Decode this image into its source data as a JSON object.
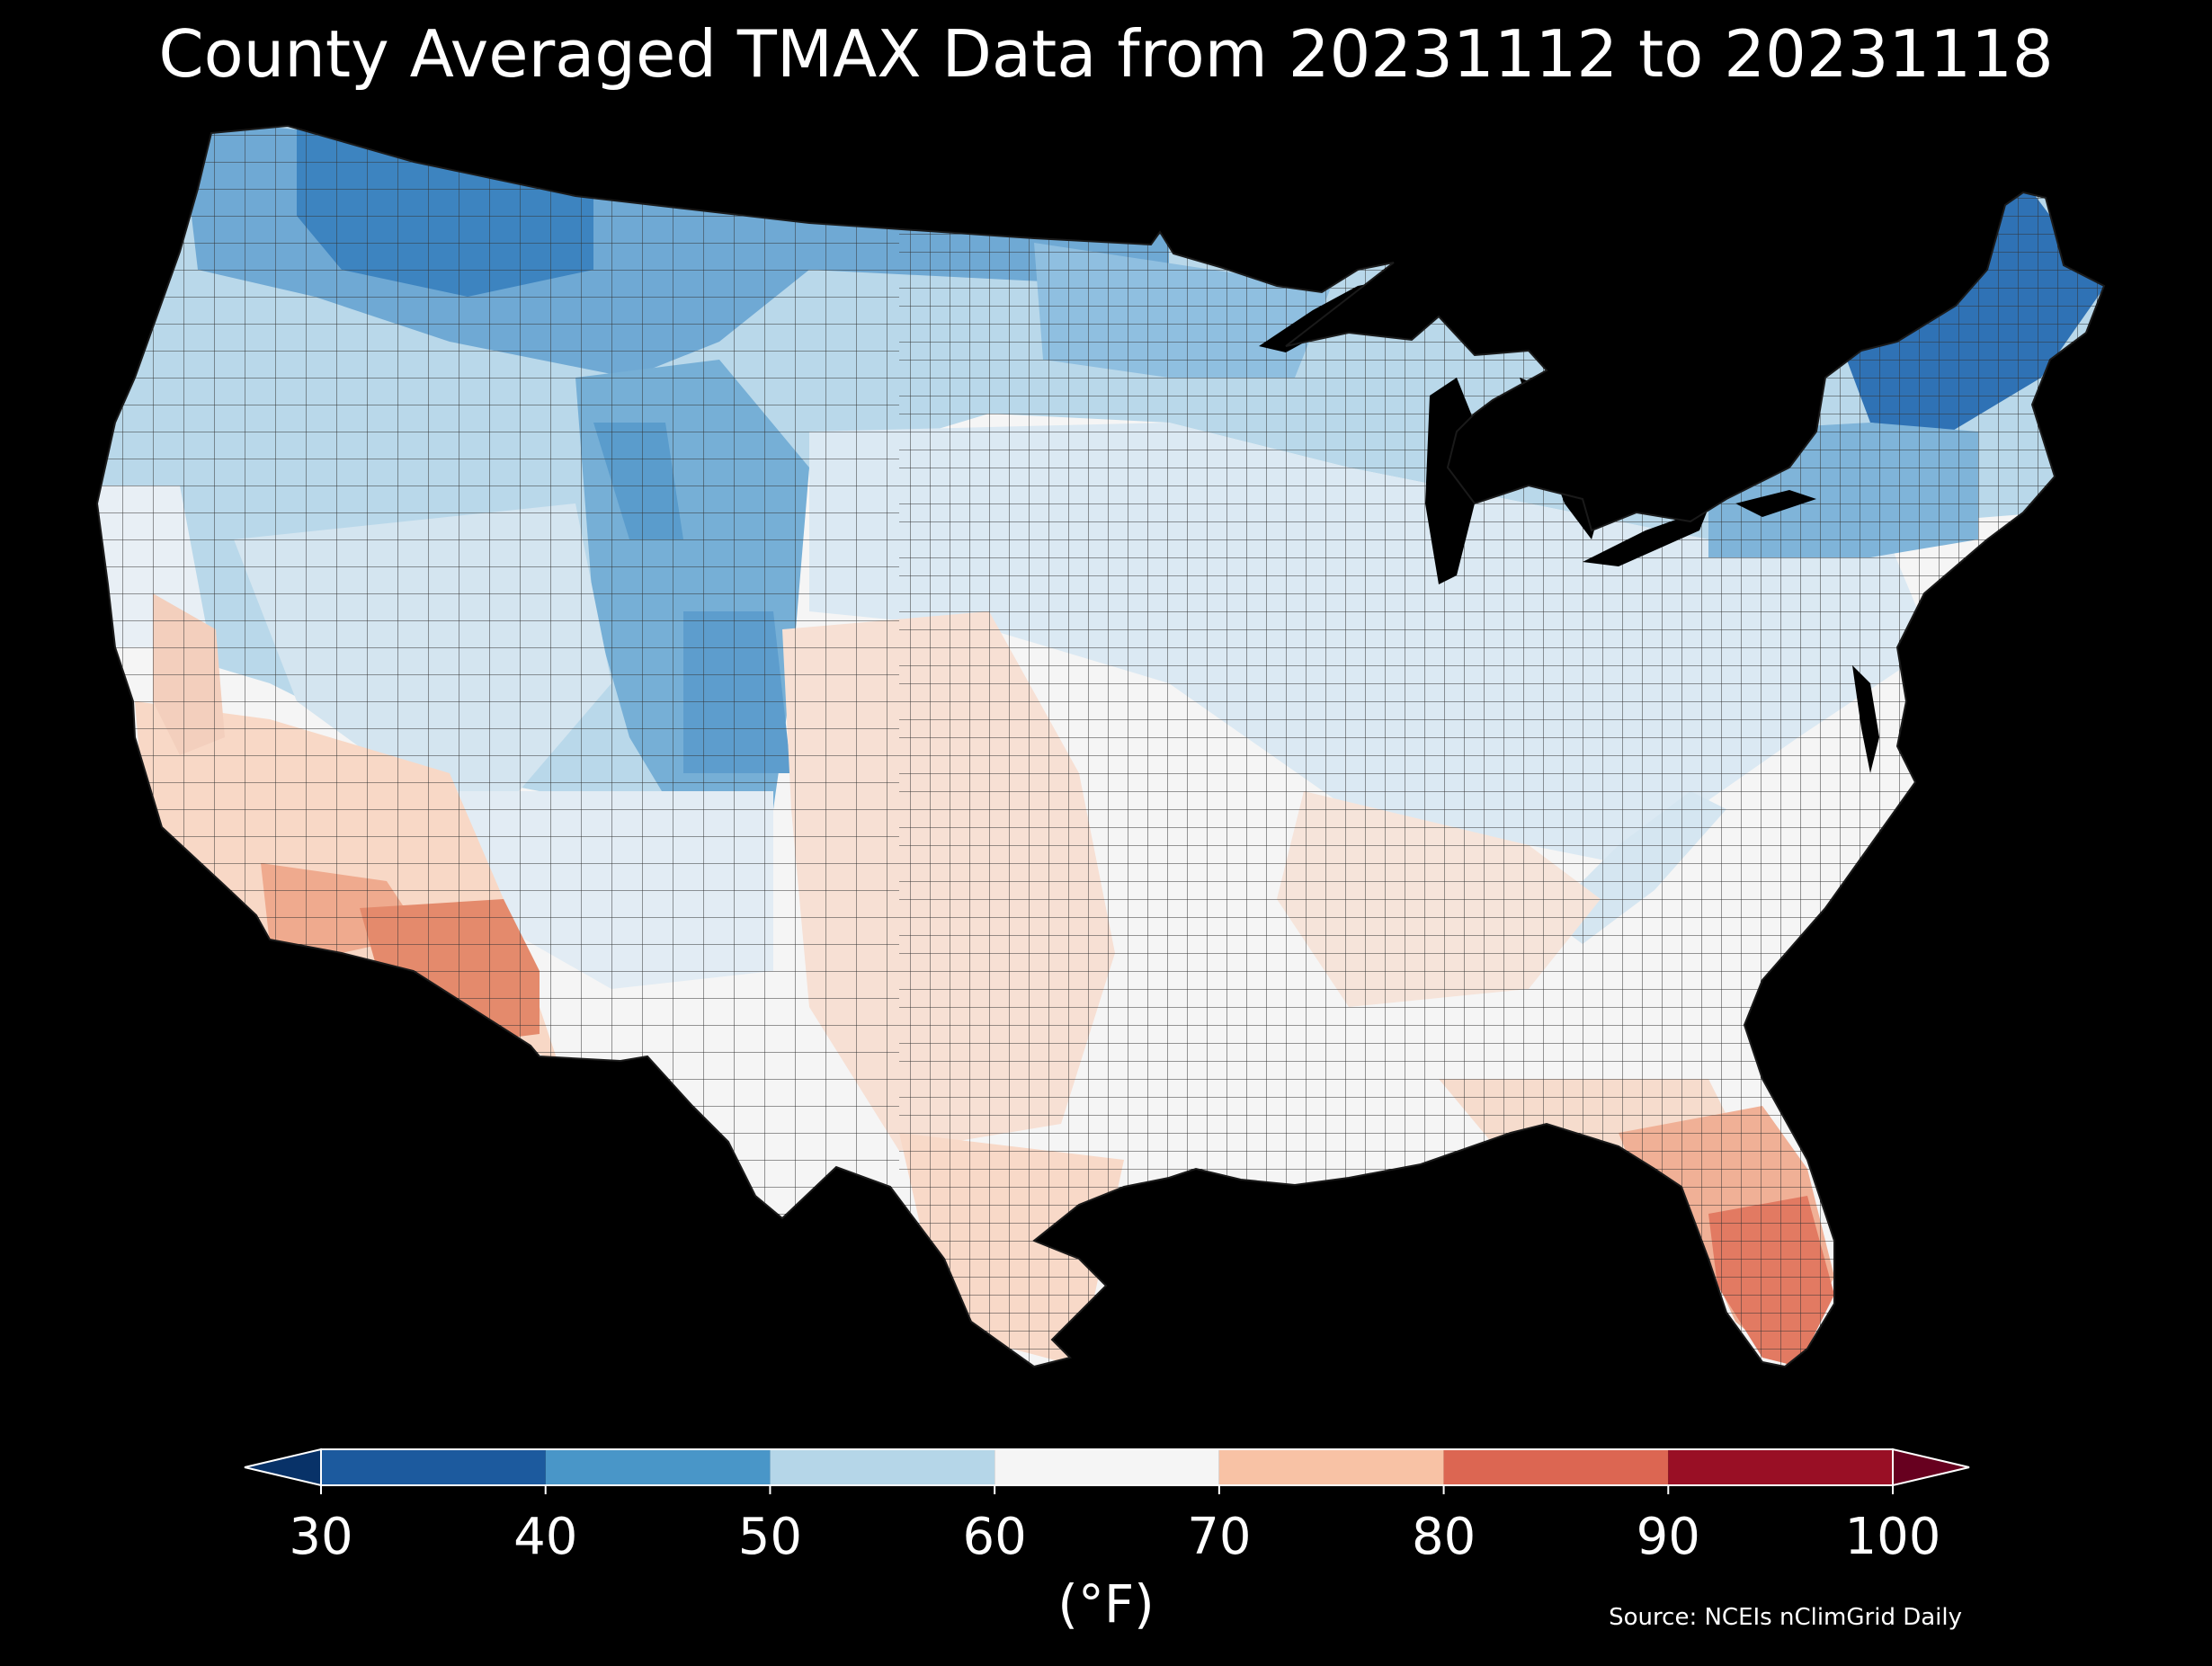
{
  "title": "County Averaged TMAX Data from 20231112 to 20231118",
  "colorbar": {
    "min": 30,
    "max": 100,
    "step": 10,
    "ticks": [
      "30",
      "40",
      "50",
      "60",
      "70",
      "80",
      "90",
      "100"
    ],
    "bin_colors": [
      "#1c5a9e",
      "#4996c8",
      "#b5d6e8",
      "#f5f5f5",
      "#f8c2a5",
      "#dc6652",
      "#990f25"
    ],
    "under_color": "#083268",
    "over_color": "#67001f",
    "unit": "(°F)"
  },
  "source": "Source: NCEIs nClimGrid Daily",
  "legend_colors": {
    "background": "#000000",
    "text": "#ffffff",
    "county_border": "#2a2a2a"
  }
}
